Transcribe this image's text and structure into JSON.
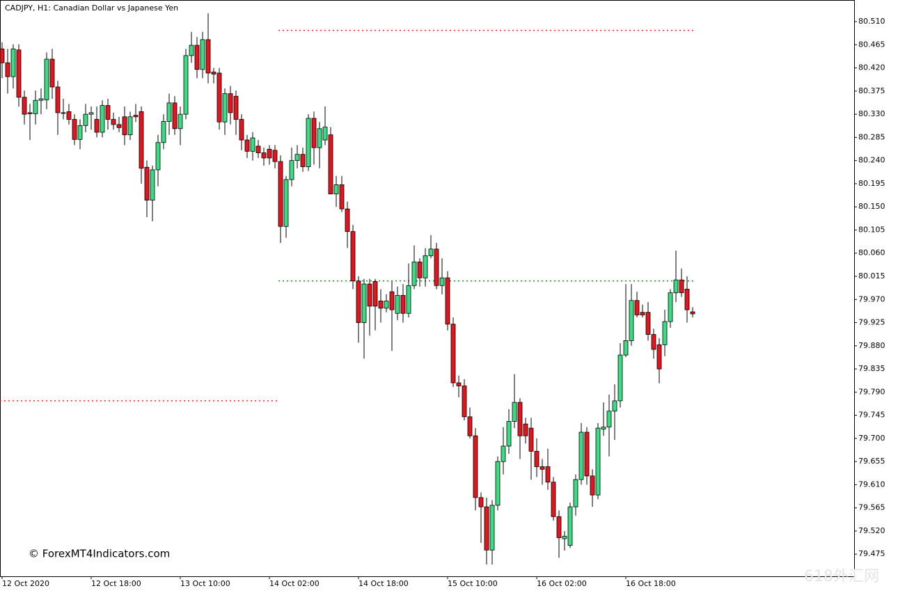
{
  "chart_data": {
    "type": "candlestick",
    "title": "CADJPY, H1:  Canadian Dollar vs Japanese Yen",
    "watermark": "© ForexMT4Indicators.com",
    "overlay_watermark": "618外汇网",
    "up_color": "#3ddc84",
    "down_color": "#e3161f",
    "categories": [
      "12 Oct 2020",
      null,
      null,
      null,
      null,
      null,
      null,
      null,
      null,
      null,
      null,
      null,
      null,
      null,
      null,
      null,
      "12 Oct 18:00",
      null,
      null,
      null,
      null,
      null,
      null,
      null,
      null,
      null,
      null,
      null,
      null,
      null,
      null,
      null,
      "13 Oct 10:00",
      null,
      null,
      null,
      null,
      null,
      null,
      null,
      null,
      null,
      null,
      null,
      null,
      null,
      null,
      null,
      "14 Oct 02:00",
      null,
      null,
      null,
      null,
      null,
      null,
      null,
      null,
      null,
      null,
      null,
      null,
      null,
      null,
      null,
      "14 Oct 18:00",
      null,
      null,
      null,
      null,
      null,
      null,
      null,
      null,
      null,
      null,
      null,
      null,
      null,
      null,
      null,
      "15 Oct 10:00",
      null,
      null,
      null,
      null,
      null,
      null,
      null,
      null,
      null,
      null,
      null,
      null,
      null,
      null,
      null,
      "16 Oct 02:00",
      null,
      null,
      null,
      null,
      null,
      null,
      null,
      null,
      null,
      null,
      null,
      null,
      null,
      null,
      null,
      "16 Oct 18:00",
      null,
      null,
      null,
      null,
      null,
      null,
      null,
      null,
      null,
      null,
      null,
      null
    ],
    "open": [
      80.457,
      80.43,
      80.403,
      80.455,
      80.363,
      80.333,
      80.331,
      80.357,
      80.358,
      80.437,
      80.383,
      80.333,
      80.335,
      80.32,
      80.281,
      80.308,
      80.33,
      80.32,
      80.295,
      80.347,
      80.32,
      80.31,
      80.325,
      80.29,
      80.328,
      80.335,
      80.227,
      80.163,
      80.222,
      80.275,
      80.316,
      80.352,
      80.302,
      80.33,
      80.444,
      80.464,
      80.417,
      80.475,
      80.412,
      80.41,
      80.315,
      80.37,
      80.365,
      80.32,
      80.28,
      80.258,
      80.268,
      80.255,
      80.262,
      80.26,
      80.238,
      80.112,
      80.203,
      80.24,
      80.252,
      80.228,
      80.322,
      80.265,
      80.28,
      80.29,
      80.175,
      80.193,
      80.146,
      80.102,
      80.006,
      79.925,
      80.0,
      80.005,
      79.967,
      79.953,
      79.985,
      79.943,
      79.978,
      79.943,
      79.997,
      80.043,
      80.012,
      80.055,
      80.068,
      79.997,
      80.012,
      79.922,
      79.808,
      79.802,
      79.742,
      79.705,
      79.585,
      79.567,
      79.483,
      79.57,
      79.655,
      79.685,
      79.733,
      79.77,
      79.728,
      79.72,
      79.675,
      79.645,
      79.645,
      79.615,
      79.548,
      79.505,
      79.492,
      79.567,
      79.62,
      79.712,
      79.627,
      79.59,
      79.718,
      79.722,
      79.753,
      79.773,
      79.862,
      79.89,
      79.968,
      79.945,
      79.945,
      79.902,
      79.882,
      79.882,
      79.927,
      79.983,
      80.008,
      79.99,
      79.946
    ],
    "high": [
      80.47,
      80.457,
      80.466,
      80.466,
      80.376,
      80.35,
      80.376,
      80.38,
      80.45,
      80.457,
      80.395,
      80.36,
      80.35,
      80.33,
      80.32,
      80.35,
      80.345,
      80.345,
      80.357,
      80.36,
      80.333,
      80.325,
      80.345,
      80.335,
      80.35,
      80.345,
      80.24,
      80.23,
      80.29,
      80.33,
      80.37,
      80.365,
      80.345,
      80.457,
      80.49,
      80.48,
      80.49,
      80.526,
      80.42,
      80.42,
      80.38,
      80.385,
      80.376,
      80.33,
      80.29,
      80.295,
      80.28,
      80.265,
      80.27,
      80.27,
      80.25,
      80.21,
      80.265,
      80.27,
      80.265,
      80.33,
      80.335,
      80.315,
      80.345,
      80.305,
      80.21,
      80.21,
      80.16,
      80.115,
      80.015,
      80.01,
      80.01,
      80.01,
      79.99,
      79.98,
      80.005,
      79.995,
      80.0,
      80.04,
      80.075,
      80.05,
      80.07,
      80.095,
      80.08,
      80.05,
      80.025,
      79.935,
      79.822,
      79.815,
      79.76,
      79.72,
      79.595,
      79.585,
      79.58,
      79.665,
      79.722,
      79.757,
      79.825,
      79.778,
      79.74,
      79.74,
      79.7,
      79.66,
      79.68,
      79.625,
      79.56,
      79.52,
      79.575,
      79.63,
      79.73,
      79.722,
      79.64,
      79.73,
      79.77,
      79.785,
      79.805,
      79.885,
      80.0,
      80.0,
      79.985,
      79.96,
      79.965,
      79.913,
      79.895,
      79.95,
      79.99,
      80.065,
      80.03,
      80.015,
      79.955
    ],
    "low": [
      80.4,
      80.37,
      80.38,
      80.345,
      80.31,
      80.28,
      80.31,
      80.33,
      80.34,
      80.36,
      80.29,
      80.32,
      80.31,
      80.27,
      80.262,
      80.295,
      80.3,
      80.285,
      80.285,
      80.3,
      80.3,
      80.295,
      80.27,
      80.28,
      80.315,
      80.195,
      80.13,
      80.122,
      80.19,
      80.262,
      80.29,
      80.29,
      80.27,
      80.32,
      80.43,
      80.4,
      80.4,
      80.39,
      80.39,
      80.3,
      80.29,
      80.31,
      80.29,
      80.26,
      80.245,
      80.24,
      80.245,
      80.23,
      80.232,
      80.225,
      80.08,
      80.09,
      80.19,
      80.225,
      80.218,
      80.22,
      80.232,
      80.225,
      80.27,
      80.175,
      80.15,
      80.14,
      80.07,
      79.99,
      79.886,
      79.855,
      79.9,
      79.91,
      79.925,
      79.945,
      79.87,
      79.93,
      79.925,
      79.935,
      79.99,
      79.995,
      79.995,
      80.05,
      79.99,
      79.98,
      79.91,
      79.8,
      79.78,
      79.735,
      79.7,
      79.56,
      79.497,
      79.455,
      79.455,
      79.56,
      79.63,
      79.67,
      79.72,
      79.66,
      79.69,
      79.62,
      79.625,
      79.61,
      79.6,
      79.54,
      79.468,
      79.482,
      79.487,
      79.55,
      79.61,
      79.61,
      79.567,
      79.582,
      79.705,
      79.665,
      79.697,
      79.76,
      79.858,
      79.88,
      79.935,
      79.935,
      79.89,
      79.855,
      79.807,
      79.86,
      79.915,
      79.965,
      79.975,
      79.925,
      79.935
    ],
    "close": [
      80.43,
      80.403,
      80.457,
      80.363,
      80.33,
      80.331,
      80.357,
      80.36,
      80.437,
      80.383,
      80.333,
      80.332,
      80.32,
      80.281,
      80.308,
      80.33,
      80.333,
      80.295,
      80.347,
      80.32,
      80.31,
      80.304,
      80.29,
      80.325,
      80.325,
      80.225,
      80.163,
      80.222,
      80.275,
      80.316,
      80.352,
      80.302,
      80.33,
      80.444,
      80.464,
      80.417,
      80.475,
      80.41,
      80.408,
      80.315,
      80.37,
      80.333,
      80.32,
      80.28,
      80.258,
      80.284,
      80.255,
      80.245,
      80.245,
      80.238,
      80.112,
      80.203,
      80.24,
      80.252,
      80.228,
      80.322,
      80.265,
      80.302,
      80.305,
      80.175,
      80.193,
      80.146,
      80.102,
      80.006,
      79.925,
      80.0,
      79.957,
      79.957,
      79.953,
      79.967,
      79.95,
      79.978,
      79.943,
      79.997,
      80.043,
      80.012,
      80.055,
      80.068,
      79.997,
      80.012,
      79.922,
      79.808,
      79.802,
      79.742,
      79.705,
      79.585,
      79.567,
      79.483,
      79.57,
      79.655,
      79.685,
      79.733,
      79.77,
      79.705,
      79.705,
      79.675,
      79.645,
      79.64,
      79.615,
      79.548,
      79.507,
      79.51,
      79.567,
      79.62,
      79.712,
      79.627,
      79.59,
      79.72,
      79.722,
      79.753,
      79.773,
      79.862,
      79.89,
      79.968,
      79.94,
      79.94,
      79.902,
      79.873,
      79.835,
      79.927,
      79.983,
      80.008,
      79.983,
      79.95,
      79.942
    ],
    "levels": [
      {
        "value": 80.493,
        "color": "#ff2020",
        "from": 50,
        "to": 124
      },
      {
        "value": 80.006,
        "color": "#1a8c1a",
        "from": 50,
        "to": 124
      },
      {
        "value": 79.773,
        "color": "#ff2020",
        "from": 0,
        "to": 49
      }
    ],
    "ylim": [
      79.432,
      80.552
    ],
    "yticks": [
      {
        "value": 80.51,
        "label": "80.510"
      },
      80.465,
      {
        "value": 80.42,
        "label": "80.420"
      },
      80.375,
      {
        "value": 80.33,
        "label": "80.330"
      },
      80.285,
      {
        "value": 80.24,
        "label": "80.240"
      },
      80.195,
      {
        "value": 80.15,
        "label": "80.150"
      },
      80.105,
      {
        "value": 80.06,
        "label": "80.060"
      },
      80.015,
      {
        "value": 79.97,
        "label": "79.970"
      },
      79.925,
      {
        "value": 79.88,
        "label": "79.880"
      },
      79.835,
      {
        "value": 79.79,
        "label": "79.790"
      },
      79.745,
      {
        "value": 79.7,
        "label": "79.700"
      },
      79.655,
      {
        "value": 79.61,
        "label": "79.610"
      },
      79.565,
      {
        "value": 79.52,
        "label": "79.520"
      },
      79.475
    ]
  }
}
